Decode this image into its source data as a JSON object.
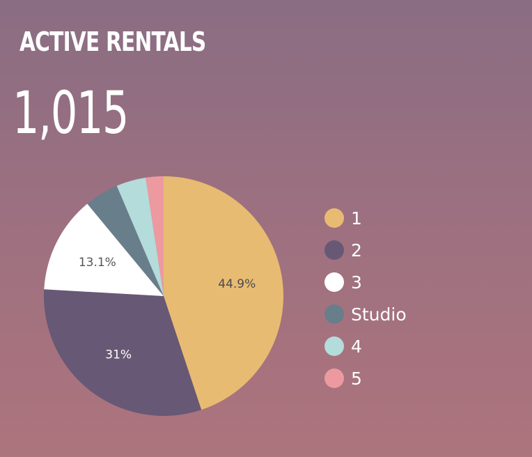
{
  "title": "ACTIVE RENTALS",
  "total": "1,015",
  "chart_data": {
    "type": "pie",
    "labels": [
      "1",
      "2",
      "3",
      "Studio",
      "4",
      "5"
    ],
    "values": [
      44.9,
      31,
      13.1,
      4.6,
      4.0,
      2.4
    ],
    "colors": [
      "#e8bb72",
      "#675875",
      "#ffffff",
      "#687e8b",
      "#b3dcdb",
      "#ec9aa0"
    ],
    "data_labels": [
      "44.9%",
      "31%",
      "13.1%",
      "",
      "",
      ""
    ],
    "label_colors": [
      "#4a4a4a",
      "#ffffff",
      "#555555",
      "",
      "",
      ""
    ],
    "legend_position": "right"
  },
  "legend": {
    "items": [
      {
        "label": "1",
        "color": "#e8bb72"
      },
      {
        "label": "2",
        "color": "#675875"
      },
      {
        "label": "3",
        "color": "#ffffff"
      },
      {
        "label": "Studio",
        "color": "#687e8b"
      },
      {
        "label": "4",
        "color": "#b3dcdb"
      },
      {
        "label": "5",
        "color": "#ec9aa0"
      }
    ]
  }
}
